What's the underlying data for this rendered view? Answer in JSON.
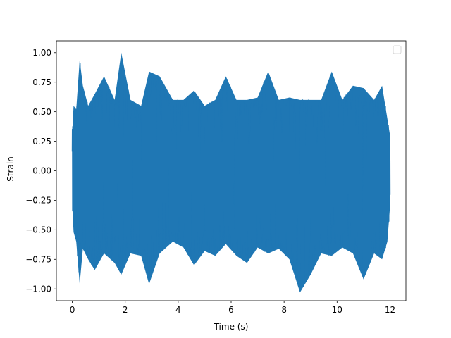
{
  "chart_data": {
    "type": "line",
    "title": "",
    "xlabel": "Time (s)",
    "ylabel": "Strain",
    "xlim": [
      -0.6,
      12.6
    ],
    "ylim": [
      -1.1,
      1.1
    ],
    "x_ticks": [
      0,
      2,
      4,
      6,
      8,
      10,
      12
    ],
    "x_tick_labels": [
      "0",
      "2",
      "4",
      "6",
      "8",
      "10",
      "12"
    ],
    "y_ticks": [
      -1.0,
      -0.75,
      -0.5,
      -0.25,
      0.0,
      0.25,
      0.5,
      0.75,
      1.0
    ],
    "y_tick_labels": [
      "−1.00",
      "−0.75",
      "−0.50",
      "−0.25",
      "0.00",
      "0.25",
      "0.50",
      "0.75",
      "1.00"
    ],
    "grid": false,
    "legend": {
      "placement": "top-right",
      "entries": []
    },
    "series": [
      {
        "color": "#1f77b4",
        "x_range": [
          0,
          12
        ],
        "envelope": [
          {
            "x": 0.0,
            "min": -0.3,
            "max": 0.33
          },
          {
            "x": 0.05,
            "min": -0.52,
            "max": 0.55
          },
          {
            "x": 0.15,
            "min": -0.6,
            "max": 0.52
          },
          {
            "x": 0.28,
            "min": -0.96,
            "max": 0.94
          },
          {
            "x": 0.4,
            "min": -0.66,
            "max": 0.72
          },
          {
            "x": 0.6,
            "min": -0.75,
            "max": 0.55
          },
          {
            "x": 0.85,
            "min": -0.84,
            "max": 0.65
          },
          {
            "x": 1.2,
            "min": -0.7,
            "max": 0.8
          },
          {
            "x": 1.6,
            "min": -0.78,
            "max": 0.6
          },
          {
            "x": 1.85,
            "min": -0.88,
            "max": 1.0
          },
          {
            "x": 2.2,
            "min": -0.7,
            "max": 0.6
          },
          {
            "x": 2.6,
            "min": -0.72,
            "max": 0.55
          },
          {
            "x": 2.9,
            "min": -0.96,
            "max": 0.84
          },
          {
            "x": 3.3,
            "min": -0.7,
            "max": 0.8
          },
          {
            "x": 3.8,
            "min": -0.6,
            "max": 0.6
          },
          {
            "x": 4.2,
            "min": -0.65,
            "max": 0.6
          },
          {
            "x": 4.6,
            "min": -0.8,
            "max": 0.68
          },
          {
            "x": 5.0,
            "min": -0.68,
            "max": 0.55
          },
          {
            "x": 5.4,
            "min": -0.72,
            "max": 0.6
          },
          {
            "x": 5.8,
            "min": -0.62,
            "max": 0.8
          },
          {
            "x": 6.2,
            "min": -0.72,
            "max": 0.6
          },
          {
            "x": 6.6,
            "min": -0.78,
            "max": 0.6
          },
          {
            "x": 7.0,
            "min": -0.65,
            "max": 0.62
          },
          {
            "x": 7.4,
            "min": -0.7,
            "max": 0.84
          },
          {
            "x": 7.8,
            "min": -0.66,
            "max": 0.6
          },
          {
            "x": 8.2,
            "min": -0.75,
            "max": 0.62
          },
          {
            "x": 8.6,
            "min": -1.03,
            "max": 0.6
          },
          {
            "x": 9.0,
            "min": -0.88,
            "max": 0.6
          },
          {
            "x": 9.4,
            "min": -0.7,
            "max": 0.6
          },
          {
            "x": 9.8,
            "min": -0.72,
            "max": 0.84
          },
          {
            "x": 10.2,
            "min": -0.65,
            "max": 0.6
          },
          {
            "x": 10.6,
            "min": -0.7,
            "max": 0.72
          },
          {
            "x": 11.0,
            "min": -0.92,
            "max": 0.7
          },
          {
            "x": 11.4,
            "min": -0.7,
            "max": 0.6
          },
          {
            "x": 11.7,
            "min": -0.75,
            "max": 0.72
          },
          {
            "x": 11.9,
            "min": -0.6,
            "max": 0.44
          },
          {
            "x": 12.0,
            "min": -0.3,
            "max": 0.3
          }
        ]
      }
    ]
  }
}
